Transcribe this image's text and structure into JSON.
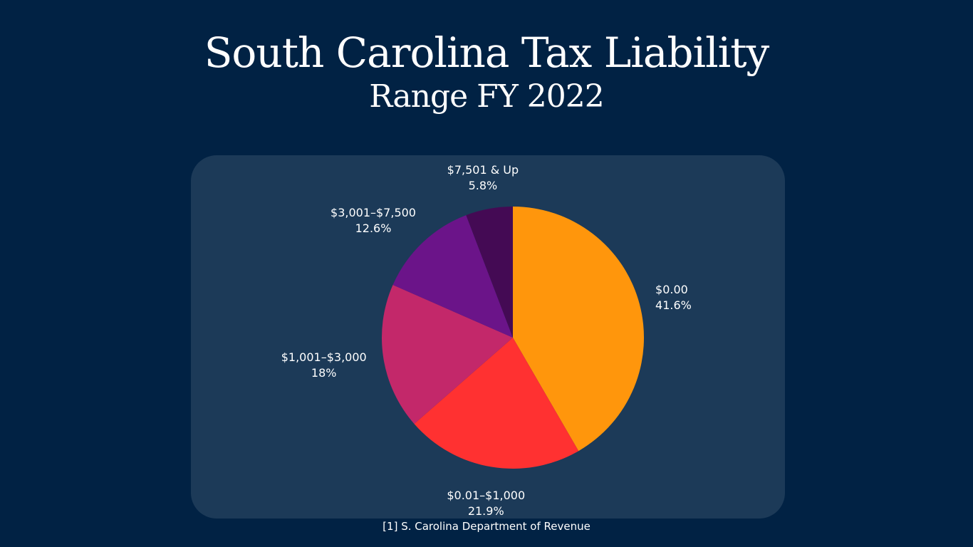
{
  "header": {
    "title": "South Carolina Tax Liability",
    "subtitle": "Range FY 2022"
  },
  "footer": {
    "source": "[1] S. Carolina Department of  Revenue"
  },
  "chart_data": {
    "type": "pie",
    "title": "South Carolina Tax Liability Range FY 2022",
    "start_angle_deg": 0,
    "direction": "clockwise",
    "slices": [
      {
        "label": "$0.00",
        "value": 41.6,
        "display": "41.6%",
        "color": "#ff960c"
      },
      {
        "label": "$0.01–$1,000",
        "value": 21.9,
        "display": "21.9%",
        "color": "#ff3131"
      },
      {
        "label": "$1,001–$3,000",
        "value": 18,
        "display": "18%",
        "color": "#c3286a"
      },
      {
        "label": "$3,001–$7,500",
        "value": 12.6,
        "display": "12.6%",
        "color": "#6b1489"
      },
      {
        "label": "$7,501 & Up",
        "value": 5.8,
        "display": "5.8%",
        "color": "#440a54"
      }
    ]
  }
}
